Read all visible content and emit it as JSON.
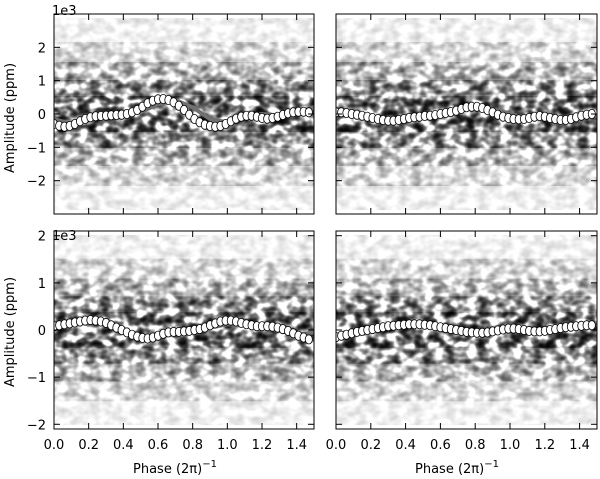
{
  "chart_data": [
    {
      "type": "scatter",
      "panel": "top-left",
      "x_unit_label": "",
      "ylabel": "Amplitude (ppm)",
      "multiplier": "1e3",
      "xlim": [
        0.0,
        1.5
      ],
      "ylim": [
        -3,
        3
      ],
      "y_ticks": [
        "−2",
        "−1",
        "0",
        "1",
        "2"
      ],
      "x_ticks": [],
      "series": [
        {
          "role": "binned means (white circles)",
          "x": [
            0.0,
            0.03,
            0.06,
            0.09,
            0.12,
            0.15,
            0.18,
            0.21,
            0.24,
            0.27,
            0.3,
            0.33,
            0.36,
            0.39,
            0.42,
            0.45,
            0.48,
            0.51,
            0.54,
            0.57,
            0.6,
            0.63,
            0.66,
            0.69,
            0.72,
            0.75,
            0.78,
            0.81,
            0.84,
            0.87,
            0.9,
            0.93,
            0.96,
            0.99,
            1.02,
            1.05,
            1.08,
            1.11,
            1.14,
            1.17,
            1.2,
            1.23,
            1.26,
            1.29,
            1.32,
            1.35,
            1.38,
            1.41,
            1.44,
            1.47
          ],
          "y": [
            -0.3,
            -0.35,
            -0.38,
            -0.36,
            -0.3,
            -0.22,
            -0.15,
            -0.1,
            -0.07,
            -0.06,
            -0.05,
            -0.04,
            -0.03,
            -0.02,
            0.0,
            0.05,
            0.12,
            0.22,
            0.32,
            0.4,
            0.44,
            0.45,
            0.42,
            0.35,
            0.25,
            0.12,
            -0.02,
            -0.15,
            -0.25,
            -0.32,
            -0.36,
            -0.38,
            -0.36,
            -0.3,
            -0.22,
            -0.14,
            -0.08,
            -0.05,
            -0.05,
            -0.08,
            -0.12,
            -0.14,
            -0.12,
            -0.08,
            -0.03,
            0.02,
            0.05,
            0.07,
            0.07,
            0.05
          ]
        },
        {
          "role": "model fit (grey line)",
          "x": [
            0.0,
            0.1,
            0.2,
            0.3,
            0.4,
            0.5,
            0.6,
            0.7,
            0.8,
            0.9,
            1.0,
            1.1,
            1.2,
            1.3,
            1.4,
            1.5
          ],
          "y": [
            -0.15,
            -0.3,
            -0.2,
            -0.05,
            0.0,
            0.05,
            0.3,
            0.42,
            0.2,
            -0.15,
            -0.25,
            -0.1,
            0.0,
            -0.05,
            0.05,
            0.2
          ]
        }
      ]
    },
    {
      "type": "scatter",
      "panel": "top-right",
      "xlim": [
        0.0,
        1.5
      ],
      "ylim": [
        -3,
        3
      ],
      "series": [
        {
          "role": "binned means (white circles)",
          "x": [
            0.0,
            0.03,
            0.06,
            0.09,
            0.12,
            0.15,
            0.18,
            0.21,
            0.24,
            0.27,
            0.3,
            0.33,
            0.36,
            0.39,
            0.42,
            0.45,
            0.48,
            0.51,
            0.54,
            0.57,
            0.6,
            0.63,
            0.66,
            0.69,
            0.72,
            0.75,
            0.78,
            0.81,
            0.84,
            0.87,
            0.9,
            0.93,
            0.96,
            0.99,
            1.02,
            1.05,
            1.08,
            1.11,
            1.14,
            1.17,
            1.2,
            1.23,
            1.26,
            1.29,
            1.32,
            1.35,
            1.38,
            1.41,
            1.44,
            1.47
          ],
          "y": [
            0.05,
            0.05,
            0.03,
            0.0,
            -0.02,
            -0.05,
            -0.08,
            -0.12,
            -0.15,
            -0.18,
            -0.2,
            -0.2,
            -0.18,
            -0.15,
            -0.12,
            -0.1,
            -0.08,
            -0.06,
            -0.05,
            -0.03,
            0.0,
            0.03,
            0.06,
            0.1,
            0.15,
            0.2,
            0.22,
            0.22,
            0.18,
            0.12,
            0.05,
            -0.02,
            -0.08,
            -0.12,
            -0.15,
            -0.16,
            -0.15,
            -0.12,
            -0.08,
            -0.06,
            -0.08,
            -0.12,
            -0.15,
            -0.18,
            -0.18,
            -0.15,
            -0.1,
            -0.05,
            -0.02,
            0.0
          ]
        },
        {
          "role": "model fit (grey line)",
          "x": [
            0.0,
            0.1,
            0.2,
            0.3,
            0.4,
            0.5,
            0.6,
            0.7,
            0.8,
            0.9,
            1.0,
            1.1,
            1.2,
            1.3,
            1.4,
            1.5
          ],
          "y": [
            0.1,
            0.02,
            -0.1,
            -0.18,
            -0.12,
            -0.08,
            -0.02,
            0.08,
            0.2,
            0.15,
            0.0,
            -0.12,
            -0.1,
            -0.15,
            -0.15,
            -0.05
          ]
        }
      ]
    },
    {
      "type": "scatter",
      "panel": "bottom-left",
      "xlabel": "Phase (2π)",
      "xlabel_superscript": "−1",
      "ylabel": "Amplitude (ppm)",
      "multiplier": "1e3",
      "xlim": [
        0.0,
        1.5
      ],
      "ylim": [
        -2.1,
        2.1
      ],
      "y_ticks": [
        "−2",
        "−1",
        "0",
        "1",
        "2"
      ],
      "x_ticks": [
        "0.0",
        "0.2",
        "0.4",
        "0.6",
        "0.8",
        "1.0",
        "1.2",
        "1.4"
      ],
      "series": [
        {
          "role": "binned means (white circles)",
          "x": [
            0.0,
            0.03,
            0.06,
            0.09,
            0.12,
            0.15,
            0.18,
            0.21,
            0.24,
            0.27,
            0.3,
            0.33,
            0.36,
            0.39,
            0.42,
            0.45,
            0.48,
            0.51,
            0.54,
            0.57,
            0.6,
            0.63,
            0.66,
            0.69,
            0.72,
            0.75,
            0.78,
            0.81,
            0.84,
            0.87,
            0.9,
            0.93,
            0.96,
            0.99,
            1.02,
            1.05,
            1.08,
            1.11,
            1.14,
            1.17,
            1.2,
            1.23,
            1.26,
            1.29,
            1.32,
            1.35,
            1.38,
            1.41,
            1.44,
            1.47
          ],
          "y": [
            0.08,
            0.1,
            0.12,
            0.14,
            0.16,
            0.18,
            0.2,
            0.21,
            0.2,
            0.18,
            0.15,
            0.1,
            0.05,
            0.0,
            -0.05,
            -0.1,
            -0.14,
            -0.17,
            -0.18,
            -0.16,
            -0.12,
            -0.08,
            -0.05,
            -0.04,
            -0.04,
            -0.03,
            -0.02,
            0.0,
            0.02,
            0.05,
            0.1,
            0.14,
            0.18,
            0.2,
            0.2,
            0.18,
            0.15,
            0.12,
            0.1,
            0.08,
            0.08,
            0.08,
            0.07,
            0.05,
            0.02,
            -0.02,
            -0.07,
            -0.12,
            -0.16,
            -0.2
          ]
        },
        {
          "role": "model fit (grey line)",
          "x": [
            0.0,
            0.1,
            0.2,
            0.3,
            0.4,
            0.5,
            0.6,
            0.7,
            0.8,
            0.9,
            1.0,
            1.1,
            1.2,
            1.3,
            1.4,
            1.5
          ],
          "y": [
            0.0,
            0.15,
            0.2,
            0.12,
            -0.02,
            -0.15,
            -0.12,
            -0.05,
            0.0,
            0.05,
            0.12,
            0.1,
            0.05,
            -0.02,
            -0.1,
            -0.05
          ]
        }
      ]
    },
    {
      "type": "scatter",
      "panel": "bottom-right",
      "xlabel": "Phase (2π)",
      "xlabel_superscript": "−1",
      "xlim": [
        0.0,
        1.5
      ],
      "ylim": [
        -2.1,
        2.1
      ],
      "x_ticks": [
        "0.0",
        "0.2",
        "0.4",
        "0.6",
        "0.8",
        "1.0",
        "1.2",
        "1.4"
      ],
      "series": [
        {
          "role": "binned means (white circles)",
          "x": [
            0.0,
            0.03,
            0.06,
            0.09,
            0.12,
            0.15,
            0.18,
            0.21,
            0.24,
            0.27,
            0.3,
            0.33,
            0.36,
            0.39,
            0.42,
            0.45,
            0.48,
            0.51,
            0.54,
            0.57,
            0.6,
            0.63,
            0.66,
            0.69,
            0.72,
            0.75,
            0.78,
            0.81,
            0.84,
            0.87,
            0.9,
            0.93,
            0.96,
            0.99,
            1.02,
            1.05,
            1.08,
            1.11,
            1.14,
            1.17,
            1.2,
            1.23,
            1.26,
            1.29,
            1.32,
            1.35,
            1.38,
            1.41,
            1.44,
            1.47
          ],
          "y": [
            -0.15,
            -0.12,
            -0.1,
            -0.07,
            -0.04,
            -0.02,
            0.0,
            0.02,
            0.04,
            0.06,
            0.08,
            0.09,
            0.1,
            0.11,
            0.12,
            0.12,
            0.12,
            0.11,
            0.1,
            0.08,
            0.06,
            0.04,
            0.02,
            0.0,
            -0.02,
            -0.04,
            -0.05,
            -0.06,
            -0.06,
            -0.05,
            -0.03,
            -0.01,
            0.01,
            0.03,
            0.03,
            0.02,
            0.0,
            -0.02,
            -0.03,
            -0.03,
            -0.02,
            0.0,
            0.02,
            0.04,
            0.06,
            0.07,
            0.08,
            0.09,
            0.1,
            0.1
          ]
        },
        {
          "role": "model fit (grey line)",
          "x": [
            0.0,
            0.1,
            0.2,
            0.3,
            0.4,
            0.5,
            0.6,
            0.7,
            0.8,
            0.9,
            1.0,
            1.1,
            1.2,
            1.3,
            1.4,
            1.5
          ],
          "y": [
            -0.15,
            -0.08,
            0.0,
            0.08,
            0.12,
            0.1,
            0.05,
            0.0,
            -0.05,
            -0.06,
            0.0,
            0.02,
            -0.02,
            0.02,
            0.08,
            0.12
          ]
        }
      ]
    }
  ],
  "colors": {
    "density_dark": "#000000",
    "density_light": "#ffffff",
    "fit_line": "#707070",
    "bin_marker_fill": "#ffffff",
    "bin_marker_edge": "#000000"
  }
}
